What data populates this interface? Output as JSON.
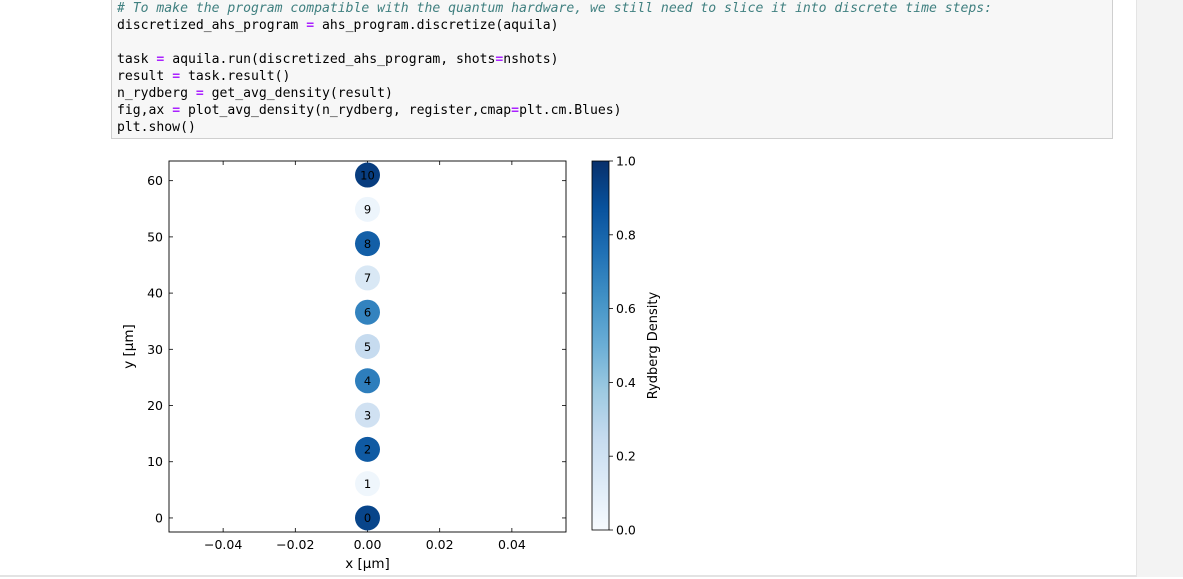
{
  "code_cell": {
    "lines": [
      {
        "kind": "comment",
        "text": "# To make the program compatible with the quantum hardware, we still need to slice it into discrete time steps:"
      },
      {
        "kind": "code",
        "parts": [
          [
            "v",
            "discretized_ahs_program "
          ],
          [
            "o",
            "="
          ],
          [
            "v",
            " ahs_program.discretize(aquila)"
          ]
        ]
      },
      {
        "kind": "blank"
      },
      {
        "kind": "code",
        "parts": [
          [
            "v",
            "task "
          ],
          [
            "o",
            "="
          ],
          [
            "v",
            " aquila.run(discretized_ahs_program, shots"
          ],
          [
            "o",
            "="
          ],
          [
            "v",
            "nshots)"
          ]
        ]
      },
      {
        "kind": "code",
        "parts": [
          [
            "v",
            "result "
          ],
          [
            "o",
            "="
          ],
          [
            "v",
            " task.result()"
          ]
        ]
      },
      {
        "kind": "code",
        "parts": [
          [
            "v",
            "n_rydberg "
          ],
          [
            "o",
            "="
          ],
          [
            "v",
            " get_avg_density(result)"
          ]
        ]
      },
      {
        "kind": "code",
        "parts": [
          [
            "v",
            "fig,ax "
          ],
          [
            "o",
            "="
          ],
          [
            "v",
            " plot_avg_density(n_rydberg, register,cmap"
          ],
          [
            "o",
            "="
          ],
          [
            "v",
            "plt.cm.Blues)"
          ]
        ]
      },
      {
        "kind": "code",
        "parts": [
          [
            "v",
            "plt.show()"
          ]
        ]
      }
    ]
  },
  "chart_data": {
    "type": "scatter",
    "title": "",
    "xlabel": "x [μm]",
    "ylabel": "y [μm]",
    "xlim": [
      -0.055,
      0.055
    ],
    "ylim": [
      -2.5,
      63.5
    ],
    "xticks": [
      -0.04,
      -0.02,
      0.0,
      0.02,
      0.04
    ],
    "xtick_labels": [
      "−0.04",
      "−0.02",
      "0.00",
      "0.02",
      "0.04"
    ],
    "yticks": [
      0,
      10,
      20,
      30,
      40,
      50,
      60
    ],
    "ytick_labels": [
      "0",
      "10",
      "20",
      "30",
      "40",
      "50",
      "60"
    ],
    "grid": false,
    "points": [
      {
        "label": "0",
        "x": 0,
        "y": 0,
        "density": 0.92
      },
      {
        "label": "1",
        "x": 0,
        "y": 6.1,
        "density": 0.04
      },
      {
        "label": "2",
        "x": 0,
        "y": 12.2,
        "density": 0.84
      },
      {
        "label": "3",
        "x": 0,
        "y": 18.3,
        "density": 0.2
      },
      {
        "label": "4",
        "x": 0,
        "y": 24.4,
        "density": 0.7
      },
      {
        "label": "5",
        "x": 0,
        "y": 30.5,
        "density": 0.25
      },
      {
        "label": "6",
        "x": 0,
        "y": 36.6,
        "density": 0.68
      },
      {
        "label": "7",
        "x": 0,
        "y": 42.7,
        "density": 0.15
      },
      {
        "label": "8",
        "x": 0,
        "y": 48.8,
        "density": 0.82
      },
      {
        "label": "9",
        "x": 0,
        "y": 54.9,
        "density": 0.05
      },
      {
        "label": "10",
        "x": 0,
        "y": 61.0,
        "density": 0.95
      }
    ],
    "colorbar": {
      "label": "Rydberg Density",
      "range": [
        0.0,
        1.0
      ],
      "ticks": [
        0.0,
        0.2,
        0.4,
        0.6,
        0.8,
        1.0
      ],
      "tick_labels": [
        "0.0",
        "0.2",
        "0.4",
        "0.6",
        "0.8",
        "1.0"
      ],
      "cmap": "Blues",
      "stops": [
        "#f7fbff",
        "#deebf7",
        "#c6dbef",
        "#9ecae1",
        "#6baed6",
        "#4292c6",
        "#2171b5",
        "#08519c",
        "#08306b"
      ]
    }
  }
}
